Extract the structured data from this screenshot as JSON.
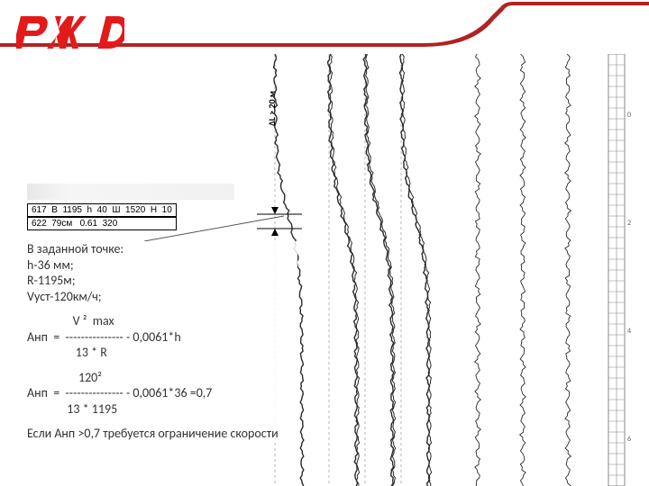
{
  "brand": {
    "name": "РЖД",
    "logo_color": "#e21a1a",
    "swoosh_color": "#b22222"
  },
  "chart": {
    "annotation": "ΔL > 20 м",
    "trace_color": "#2a2a2a",
    "grid_color": "#bdbdbd",
    "dashed_color": "#888888",
    "ruler_color": "#444444",
    "bg": "#ffffff",
    "trace_x": [
      55,
      115,
      155,
      195,
      280,
      330,
      380,
      425
    ],
    "amplitude": [
      30,
      30,
      30,
      30,
      6,
      6,
      6,
      0
    ],
    "count": 8
  },
  "databox": {
    "row1": "617  В  1195  h  40  Ш  1520  Н  10",
    "row2": "622  79см   0.61  320"
  },
  "text": {
    "l1": "В заданной точке:",
    "l2": "h-36 мм;",
    "l3": "R-1195м;",
    "l4": "Vуст-120км/ч;",
    "f_top": "                V ²  max",
    "f_mid": "Анп  =  --------------- - 0,0061*h",
    "f_bot": "                 13 * R",
    "f2_top": "                  120²",
    "f2_mid": "Анп  =  --------------- - 0,0061*36 =0,7",
    "f2_bot": "              13 * 1195",
    "concl": "Если Анп >0,7 требуется ограничение скорости"
  }
}
